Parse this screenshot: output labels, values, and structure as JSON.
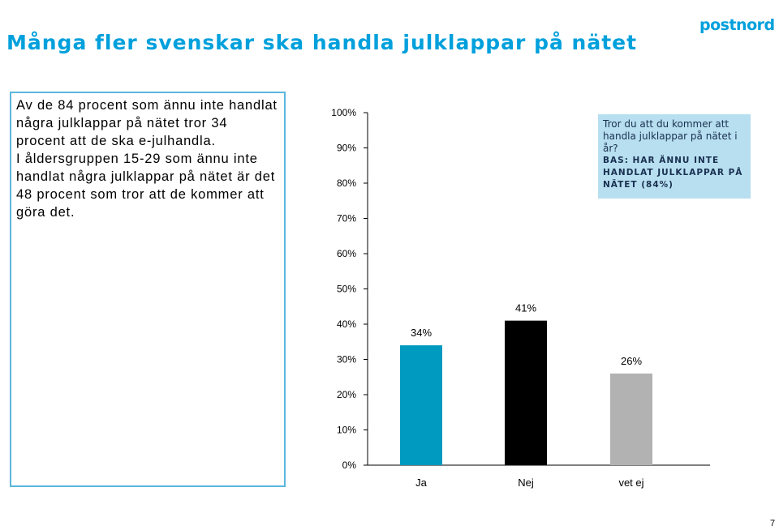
{
  "slide": {
    "title": "Många fler svenskar ska handla julklappar på nätet",
    "logo": "postnord",
    "page_number": "7"
  },
  "info": {
    "paragraph1": "Av de 84 procent som ännu inte handlat några julklappar på nätet tror 34 procent att de ska e-julhandla.",
    "paragraph2": "I åldersgruppen 15-29 som ännu inte handlat några julklappar på nätet är det 48 procent som tror att de kommer att göra det."
  },
  "legend": {
    "question": "Tror du att du kommer att handla julklappar på nätet i år?",
    "base": "BAS: HAR ÄNNU INTE HANDLAT JULKLAPPAR PÅ NÄTET (84%)"
  },
  "colors": {
    "accent": "#00a0dc",
    "bar_ja": "#0099c0",
    "bar_nej": "#000000",
    "bar_vetej": "#b2b2b2",
    "box_border": "#5cb6dc",
    "legend_bg": "#b7dff0"
  },
  "chart_data": {
    "type": "bar",
    "categories": [
      "Ja",
      "Nej",
      "vet ej"
    ],
    "values": [
      34,
      41,
      26
    ],
    "data_labels": [
      "34%",
      "41%",
      "26%"
    ],
    "bar_colors": [
      "#0099c0",
      "#000000",
      "#b2b2b2"
    ],
    "ylim": [
      0,
      100
    ],
    "yticks": [
      "0%",
      "10%",
      "20%",
      "30%",
      "40%",
      "50%",
      "60%",
      "70%",
      "80%",
      "90%",
      "100%"
    ],
    "grid": false
  }
}
